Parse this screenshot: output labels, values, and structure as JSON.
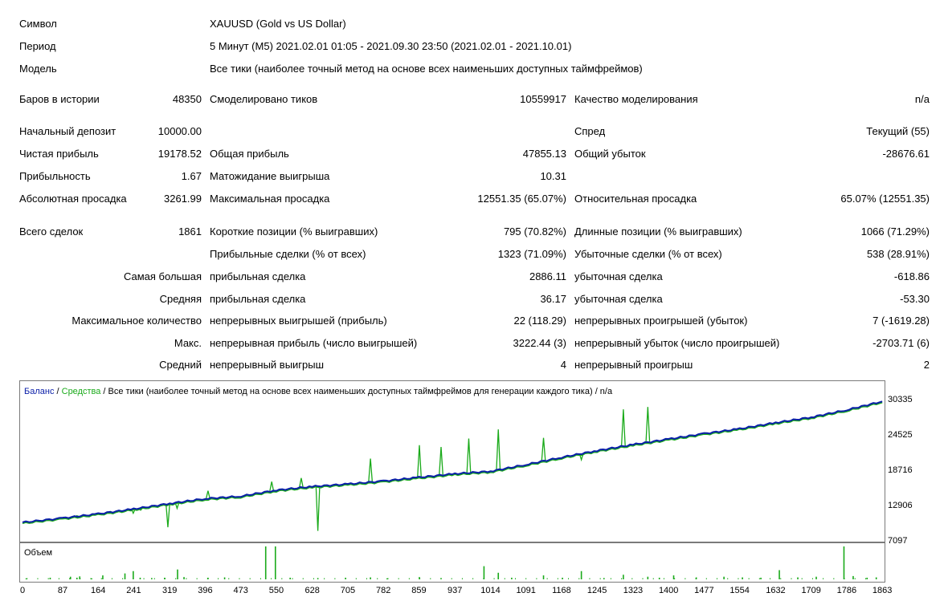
{
  "report": {
    "symbol": {
      "label": "Символ",
      "value": "XAUUSD (Gold vs US Dollar)"
    },
    "period": {
      "label": "Период",
      "value": "5 Минут (M5) 2021.02.01 01:05 - 2021.09.30 23:50 (2021.02.01 - 2021.10.01)"
    },
    "model": {
      "label": "Модель",
      "value": "Все тики (наиболее точный метод на основе всех наименьших доступных таймфреймов)"
    },
    "bars": {
      "label": "Баров в истории",
      "value": "48350"
    },
    "ticks": {
      "label": "Смоделировано тиков",
      "value": "10559917"
    },
    "quality": {
      "label": "Качество моделирования",
      "value": "n/a"
    },
    "deposit": {
      "label": "Начальный депозит",
      "value": "10000.00"
    },
    "spread": {
      "label": "Спред",
      "value": "Текущий (55)"
    },
    "net_profit": {
      "label": "Чистая прибыль",
      "value": "19178.52"
    },
    "gross_profit": {
      "label": "Общая прибыль",
      "value": "47855.13"
    },
    "gross_loss": {
      "label": "Общий убыток",
      "value": "-28676.61"
    },
    "profitability": {
      "label": "Прибыльность",
      "value": "1.67"
    },
    "expected_payoff": {
      "label": "Матожидание выигрыша",
      "value": "10.31"
    },
    "abs_drawdown": {
      "label": "Абсолютная просадка",
      "value": "3261.99"
    },
    "max_drawdown": {
      "label": "Максимальная просадка",
      "value": "12551.35 (65.07%)"
    },
    "rel_drawdown": {
      "label": "Относительная просадка",
      "value": "65.07% (12551.35)"
    },
    "total_trades": {
      "label": "Всего сделок",
      "value": "1861"
    },
    "short_pos": {
      "label": "Короткие позиции (% выигравших)",
      "value": "795 (70.82%)"
    },
    "long_pos": {
      "label": "Длинные позиции (% выигравших)",
      "value": "1066 (71.29%)"
    },
    "profit_trades": {
      "label": "Прибыльные сделки (% от всех)",
      "value": "1323 (71.09%)"
    },
    "loss_trades": {
      "label": "Убыточные сделки (% от всех)",
      "value": "538 (28.91%)"
    },
    "largest": {
      "label": "Самая большая",
      "profit_label": "прибыльная сделка",
      "profit": "2886.11",
      "loss_label": "убыточная сделка",
      "loss": "-618.86"
    },
    "average": {
      "label": "Средняя",
      "profit_label": "прибыльная сделка",
      "profit": "36.17",
      "loss_label": "убыточная сделка",
      "loss": "-53.30"
    },
    "max_count": {
      "label": "Максимальное количество",
      "win_label": "непрерывных выигрышей (прибыль)",
      "win": "22 (118.29)",
      "loss_label": "непрерывных проигрышей (убыток)",
      "loss": "7 (-1619.28)"
    },
    "max_cons": {
      "label": "Макс.",
      "win_label": "непрерывная прибыль (число выигрышей)",
      "win": "3222.44 (3)",
      "loss_label": "непрерывный убыток (число проигрышей)",
      "loss": "-2703.71 (6)"
    },
    "avg_cons": {
      "label": "Средний",
      "win_label": "непрерывный выигрыш",
      "win": "4",
      "loss_label": "непрерывный проигрыш",
      "loss": "2"
    }
  },
  "colors": {
    "balance": "#0a1ea8",
    "equity": "#1aaa1a",
    "axis": "#7a7a7a"
  },
  "chart_data": {
    "type": "line",
    "legend": {
      "balance": "Баланс",
      "sep1": " / ",
      "equity": "Средства",
      "rest": " / Все тики (наиболее точный метод на основе всех наименьших доступных таймфреймов для генерации каждого тика) / n/a"
    },
    "y_ticks": [
      "30335",
      "24525",
      "18716",
      "12906",
      "7097"
    ],
    "ylim": [
      7097,
      30335
    ],
    "x_ticks": [
      "0",
      "87",
      "164",
      "241",
      "319",
      "396",
      "473",
      "550",
      "628",
      "705",
      "782",
      "859",
      "937",
      "1014",
      "1091",
      "1168",
      "1245",
      "1323",
      "1400",
      "1477",
      "1554",
      "1632",
      "1709",
      "1786",
      "1863"
    ],
    "xlim": [
      0,
      1861
    ],
    "balance": [
      [
        0,
        10000
      ],
      [
        87,
        10700
      ],
      [
        164,
        11400
      ],
      [
        241,
        12200
      ],
      [
        319,
        13100
      ],
      [
        396,
        13900
      ],
      [
        473,
        14300
      ],
      [
        550,
        15300
      ],
      [
        628,
        15900
      ],
      [
        705,
        16300
      ],
      [
        782,
        16800
      ],
      [
        859,
        17400
      ],
      [
        937,
        18000
      ],
      [
        1014,
        18400
      ],
      [
        1091,
        19500
      ],
      [
        1168,
        20700
      ],
      [
        1245,
        21800
      ],
      [
        1323,
        22800
      ],
      [
        1400,
        23700
      ],
      [
        1477,
        24600
      ],
      [
        1554,
        25400
      ],
      [
        1632,
        26400
      ],
      [
        1709,
        27300
      ],
      [
        1786,
        28500
      ],
      [
        1863,
        29900
      ]
    ],
    "equity_dips": [
      [
        118,
        11100
      ],
      [
        190,
        11800
      ],
      [
        240,
        11500
      ],
      [
        256,
        12000
      ],
      [
        315,
        9200
      ],
      [
        335,
        12300
      ],
      [
        402,
        15200
      ],
      [
        540,
        16700
      ],
      [
        604,
        17300
      ],
      [
        640,
        8600
      ],
      [
        754,
        20500
      ],
      [
        860,
        22700
      ],
      [
        907,
        22400
      ],
      [
        967,
        23800
      ],
      [
        1031,
        25300
      ],
      [
        1129,
        23900
      ],
      [
        1211,
        20300
      ],
      [
        1302,
        28600
      ],
      [
        1355,
        29000
      ]
    ],
    "volume": {
      "label": "Объем",
      "spikes": [
        [
          8,
          0.03
        ],
        [
          60,
          0.05
        ],
        [
          104,
          0.08
        ],
        [
          118,
          0.05
        ],
        [
          124,
          0.09
        ],
        [
          150,
          0.03
        ],
        [
          174,
          0.12
        ],
        [
          222,
          0.18
        ],
        [
          240,
          0.25
        ],
        [
          255,
          0.05
        ],
        [
          280,
          0.04
        ],
        [
          308,
          0.05
        ],
        [
          336,
          0.3
        ],
        [
          350,
          0.07
        ],
        [
          402,
          0.05
        ],
        [
          438,
          0.06
        ],
        [
          527,
          1.0
        ],
        [
          548,
          1.0
        ],
        [
          580,
          0.05
        ],
        [
          640,
          0.04
        ],
        [
          700,
          0.05
        ],
        [
          754,
          0.06
        ],
        [
          790,
          0.03
        ],
        [
          860,
          0.07
        ],
        [
          907,
          0.04
        ],
        [
          1000,
          0.4
        ],
        [
          1031,
          0.2
        ],
        [
          1060,
          0.05
        ],
        [
          1129,
          0.12
        ],
        [
          1170,
          0.05
        ],
        [
          1211,
          0.25
        ],
        [
          1260,
          0.04
        ],
        [
          1302,
          0.14
        ],
        [
          1355,
          0.08
        ],
        [
          1380,
          0.05
        ],
        [
          1411,
          0.12
        ],
        [
          1460,
          0.06
        ],
        [
          1520,
          0.08
        ],
        [
          1560,
          0.06
        ],
        [
          1600,
          0.05
        ],
        [
          1640,
          0.28
        ],
        [
          1680,
          0.06
        ],
        [
          1720,
          0.08
        ],
        [
          1780,
          1.0
        ],
        [
          1800,
          0.1
        ],
        [
          1830,
          0.05
        ],
        [
          1850,
          0.06
        ]
      ]
    }
  }
}
